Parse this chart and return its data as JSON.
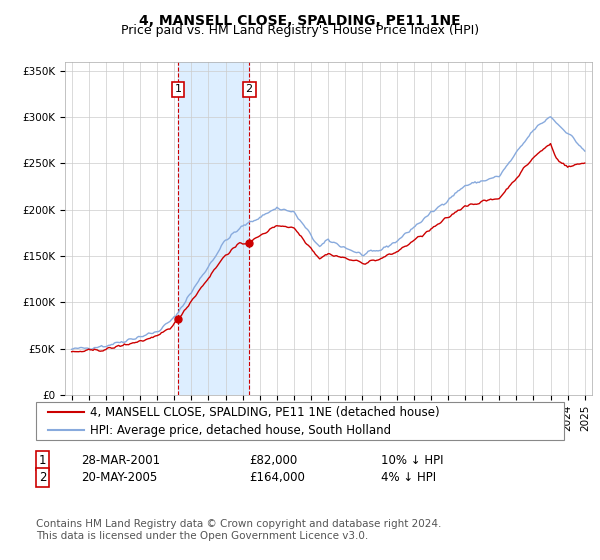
{
  "title": "4, MANSELL CLOSE, SPALDING, PE11 1NE",
  "subtitle": "Price paid vs. HM Land Registry's House Price Index (HPI)",
  "ylim": [
    0,
    360000
  ],
  "yticks": [
    0,
    50000,
    100000,
    150000,
    200000,
    250000,
    300000,
    350000
  ],
  "ytick_labels": [
    "£0",
    "£50K",
    "£100K",
    "£150K",
    "£200K",
    "£250K",
    "£300K",
    "£350K"
  ],
  "purchase1_date": 2001.22,
  "purchase1_price": 82000,
  "purchase1_label": "1",
  "purchase2_date": 2005.38,
  "purchase2_price": 164000,
  "purchase2_label": "2",
  "purchase_color": "#cc0000",
  "hpi_color": "#88aadd",
  "shade_color": "#ddeeff",
  "legend_line1": "4, MANSELL CLOSE, SPALDING, PE11 1NE (detached house)",
  "legend_line2": "HPI: Average price, detached house, South Holland",
  "table_row1": [
    "1",
    "28-MAR-2001",
    "£82,000",
    "10% ↓ HPI"
  ],
  "table_row2": [
    "2",
    "20-MAY-2005",
    "£164,000",
    "4% ↓ HPI"
  ],
  "footnote1": "Contains HM Land Registry data © Crown copyright and database right 2024.",
  "footnote2": "This data is licensed under the Open Government Licence v3.0.",
  "title_fontsize": 10,
  "subtitle_fontsize": 9,
  "tick_fontsize": 7.5,
  "legend_fontsize": 8.5,
  "table_fontsize": 8.5,
  "footnote_fontsize": 7.5
}
